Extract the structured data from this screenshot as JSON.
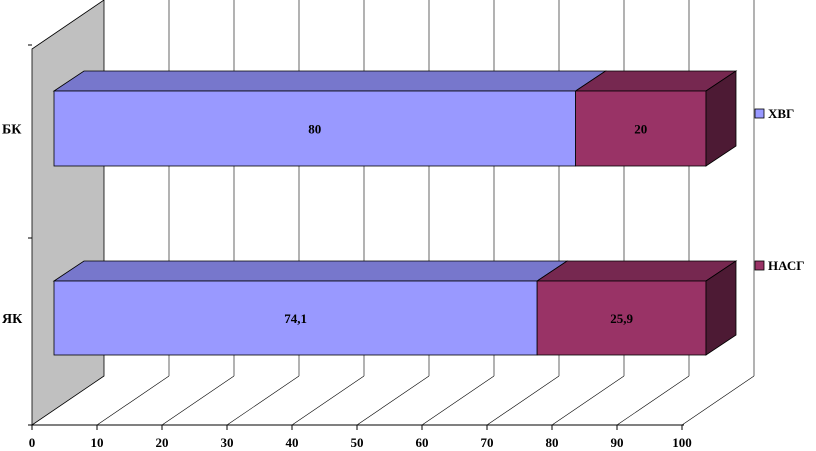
{
  "chart_data": {
    "type": "bar",
    "orientation": "horizontal",
    "stacked": true,
    "three_d": true,
    "categories": [
      "БК",
      "ЯК"
    ],
    "series": [
      {
        "name": "ХВГ",
        "values": [
          80,
          74.1
        ],
        "labels": [
          "80",
          "74,1"
        ],
        "color": "#9999ff"
      },
      {
        "name": "НАСГ",
        "values": [
          20,
          25.9
        ],
        "labels": [
          "20",
          "25,9"
        ],
        "color": "#993366"
      }
    ],
    "x_ticks": [
      "0",
      "10",
      "20",
      "30",
      "40",
      "50",
      "60",
      "70",
      "80",
      "90",
      "100"
    ],
    "xlim": [
      0,
      100
    ],
    "grid": true,
    "legend_position": "right",
    "colors": {
      "wall": "#c0c0c0",
      "gridline": "#000000",
      "series1_top": "#7777cc",
      "series2_top": "#762850",
      "series2_side": "#4d1a34"
    }
  }
}
